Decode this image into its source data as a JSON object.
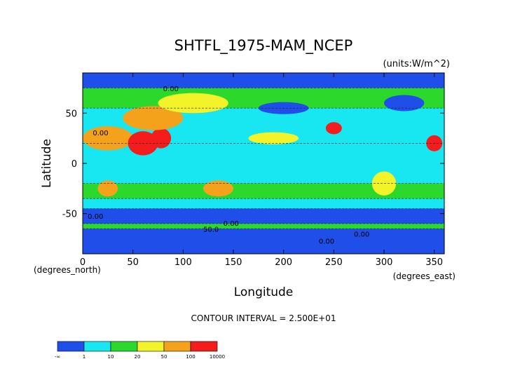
{
  "chart_data": {
    "type": "heatmap",
    "title": "SHTFL_1975-MAM_NCEP",
    "units": "(units:W/m^2)",
    "xlabel": "Longitude",
    "ylabel": "Latitude",
    "x_units": "(degrees_east)",
    "y_units": "(degrees_north)",
    "xlim": [
      0,
      360
    ],
    "ylim": [
      -90,
      90
    ],
    "x_ticks": [
      0,
      50,
      100,
      150,
      200,
      250,
      300,
      350
    ],
    "y_ticks": [
      -50,
      0,
      50
    ],
    "contour_interval": "CONTOUR INTERVAL = 2.500E+01",
    "contour_labels": [
      "0.00",
      "0.00",
      "0.00",
      "0.00",
      "50.0",
      "0.00",
      "0.00"
    ],
    "colorbar": {
      "labels": [
        "-∞",
        "1",
        "10",
        "20",
        "50",
        "100",
        "10000"
      ],
      "colors": [
        "#1f4fe8",
        "#18e6f0",
        "#2bd82b",
        "#f3f32a",
        "#f4a21c",
        "#f41c1c"
      ],
      "bounds": [
        -999,
        1,
        10,
        20,
        50,
        100,
        10000
      ]
    },
    "field_bands": [
      {
        "lat_from": 75,
        "lat_to": 90,
        "class": 0
      },
      {
        "lat_from": 55,
        "lat_to": 75,
        "class": 2
      },
      {
        "lat_from": 20,
        "lat_to": 55,
        "class": 1
      },
      {
        "lat_from": -20,
        "lat_to": 20,
        "class": 1
      },
      {
        "lat_from": -35,
        "lat_to": -20,
        "class": 2
      },
      {
        "lat_from": -45,
        "lat_to": -35,
        "class": 1
      },
      {
        "lat_from": -60,
        "lat_to": -45,
        "class": 0
      },
      {
        "lat_from": -65,
        "lat_to": -60,
        "class": 2
      },
      {
        "lat_from": -90,
        "lat_to": -65,
        "class": 0
      }
    ],
    "field_patches": [
      {
        "name": "sahara-arabia",
        "lon": 25,
        "lat": 25,
        "lon_radius": 25,
        "lat_radius": 12,
        "class": 4
      },
      {
        "name": "arabia-india-hot",
        "lon": 60,
        "lat": 20,
        "lon_radius": 15,
        "lat_radius": 12,
        "class": 5
      },
      {
        "name": "india-tibet-hot",
        "lon": 78,
        "lat": 25,
        "lon_radius": 10,
        "lat_radius": 10,
        "class": 5
      },
      {
        "name": "north-america-sw-hot",
        "lon": 250,
        "lat": 35,
        "lon_radius": 8,
        "lat_radius": 6,
        "class": 5
      },
      {
        "name": "mexico-hot",
        "lon": 350,
        "lat": 20,
        "lon_radius": 8,
        "lat_radius": 8,
        "class": 5
      },
      {
        "name": "central-asia",
        "lon": 70,
        "lat": 45,
        "lon_radius": 30,
        "lat_radius": 12,
        "class": 4
      },
      {
        "name": "siberia",
        "lon": 110,
        "lat": 60,
        "lon_radius": 35,
        "lat_radius": 10,
        "class": 3
      },
      {
        "name": "australia",
        "lon": 135,
        "lat": -25,
        "lon_radius": 15,
        "lat_radius": 8,
        "class": 4
      },
      {
        "name": "south-africa",
        "lon": 25,
        "lat": -25,
        "lon_radius": 10,
        "lat_radius": 8,
        "class": 4
      },
      {
        "name": "south-america",
        "lon": 300,
        "lat": -20,
        "lon_radius": 12,
        "lat_radius": 12,
        "class": 3
      },
      {
        "name": "pacific-yellow",
        "lon": 190,
        "lat": 25,
        "lon_radius": 25,
        "lat_radius": 6,
        "class": 3
      },
      {
        "name": "north-pacific-cold",
        "lon": 200,
        "lat": 55,
        "lon_radius": 25,
        "lat_radius": 6,
        "class": 0
      },
      {
        "name": "north-atlantic-cold",
        "lon": 320,
        "lat": 60,
        "lon_radius": 20,
        "lat_radius": 8,
        "class": 0
      }
    ]
  }
}
